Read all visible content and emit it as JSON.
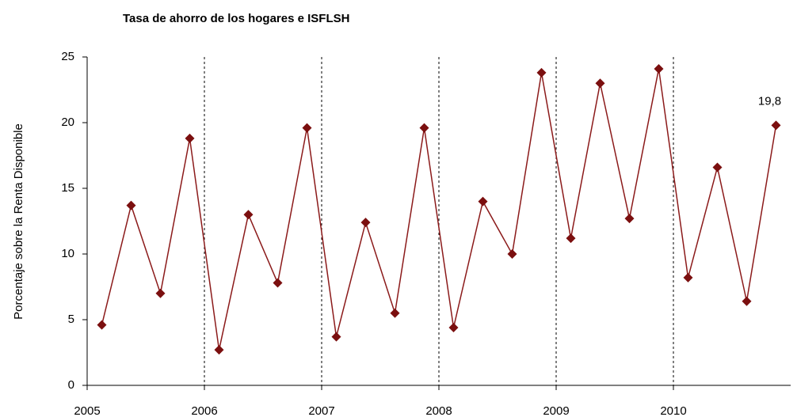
{
  "chart_data": {
    "type": "line",
    "title": "Tasa de ahorro de los hogares e ISFLSH",
    "ylabel": "Porcentaje sobre la Renta Disponible",
    "x": [
      2005.125,
      2005.375,
      2005.625,
      2005.875,
      2006.125,
      2006.375,
      2006.625,
      2006.875,
      2007.125,
      2007.375,
      2007.625,
      2007.875,
      2008.125,
      2008.375,
      2008.625,
      2008.875,
      2009.125,
      2009.375,
      2009.625,
      2009.875,
      2010.125,
      2010.375,
      2010.625,
      2010.875
    ],
    "values": [
      4.6,
      13.7,
      7.0,
      18.8,
      2.7,
      13.0,
      7.8,
      19.6,
      3.7,
      12.4,
      5.5,
      19.6,
      4.4,
      14.0,
      10.0,
      23.8,
      11.2,
      23.0,
      12.7,
      24.1,
      8.2,
      16.6,
      6.4,
      19.8
    ],
    "value_labels": [
      null,
      null,
      null,
      null,
      null,
      null,
      null,
      null,
      null,
      null,
      null,
      null,
      null,
      null,
      null,
      null,
      null,
      null,
      null,
      null,
      null,
      null,
      null,
      "19,8"
    ],
    "color": "#8b1a1a",
    "xlim": [
      2005,
      2011
    ],
    "xticks": [
      2005,
      2006,
      2007,
      2008,
      2009,
      2010
    ],
    "ylim": [
      0,
      25
    ],
    "yticks": [
      0,
      5,
      10,
      15,
      20,
      25
    ],
    "grid": true
  }
}
